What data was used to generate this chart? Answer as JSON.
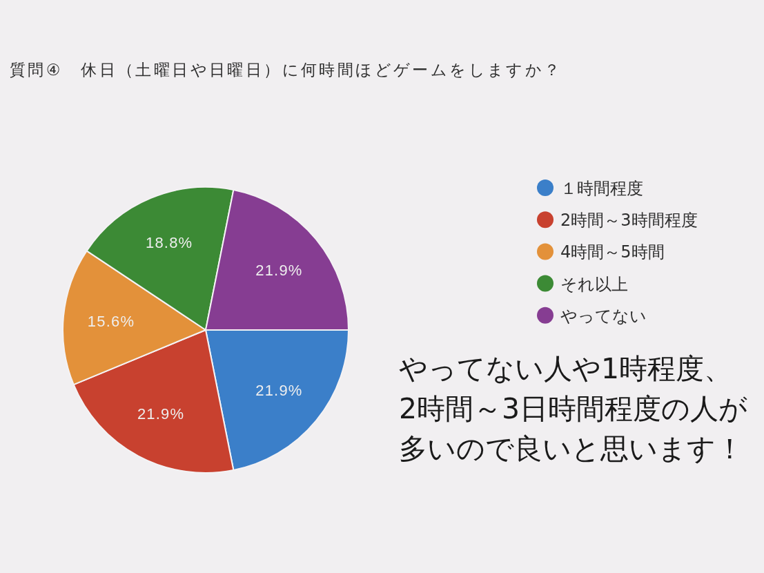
{
  "chart_data": {
    "type": "pie",
    "title": "質問④　休日（土曜日や日曜日）に何時間ほどゲームをしますか？",
    "categories": [
      "１時間程度",
      "2時間～3時間程度",
      "4時間～5時間",
      "それ以上",
      "やってない"
    ],
    "values": [
      21.9,
      21.9,
      15.6,
      18.8,
      21.9
    ],
    "colors": [
      "#3b7fc9",
      "#c8412f",
      "#e3913a",
      "#3c8a35",
      "#863d92"
    ],
    "value_labels": [
      "21.9%",
      "21.9%",
      "15.6%",
      "18.8%",
      "21.9%"
    ],
    "legend": "right",
    "annotations": [
      "やってない人や1時程度、",
      "2時間～3日時間程度の人が",
      "多いので良いと思います！"
    ]
  }
}
